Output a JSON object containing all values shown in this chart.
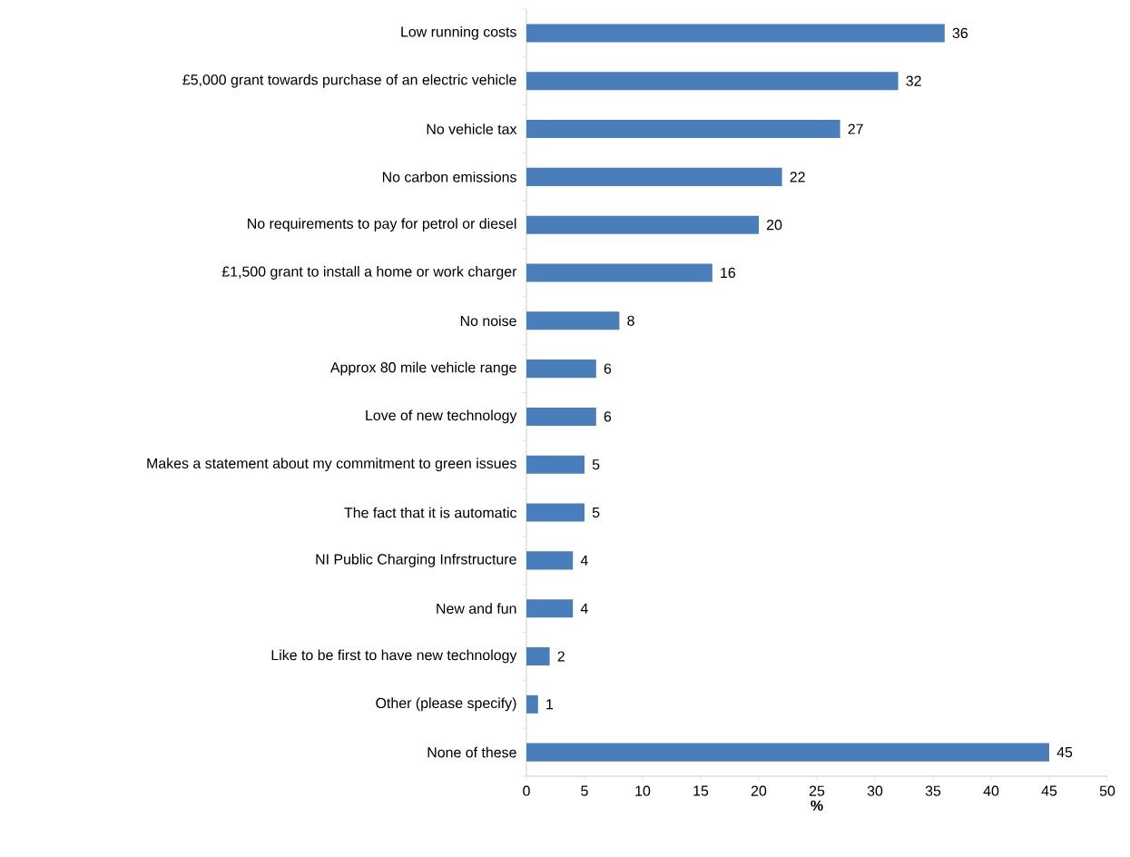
{
  "chart_data": {
    "type": "bar",
    "orientation": "horizontal",
    "xlabel": "%",
    "categories": [
      "Low running costs",
      "£5,000 grant towards purchase of an electric vehicle",
      "No vehicle tax",
      "No carbon emissions",
      "No requirements to pay for petrol or diesel",
      "£1,500 grant to install a home or work charger",
      "No noise",
      "Approx 80 mile vehicle range",
      "Love of new technology",
      "Makes a statement about my commitment to green issues",
      "The fact that it is automatic",
      "NI Public Charging Infrstructure",
      "New and fun",
      "Like to be first to have new technology",
      "Other (please specify)",
      "None of these"
    ],
    "values": [
      36,
      32,
      27,
      22,
      20,
      16,
      8,
      6,
      6,
      5,
      5,
      4,
      4,
      2,
      1,
      45
    ],
    "color": "#4a7ebb",
    "data_labels": true,
    "xlim": [
      0,
      50
    ],
    "xticks": [
      0,
      5,
      10,
      15,
      20,
      25,
      30,
      35,
      40,
      45,
      50
    ]
  }
}
